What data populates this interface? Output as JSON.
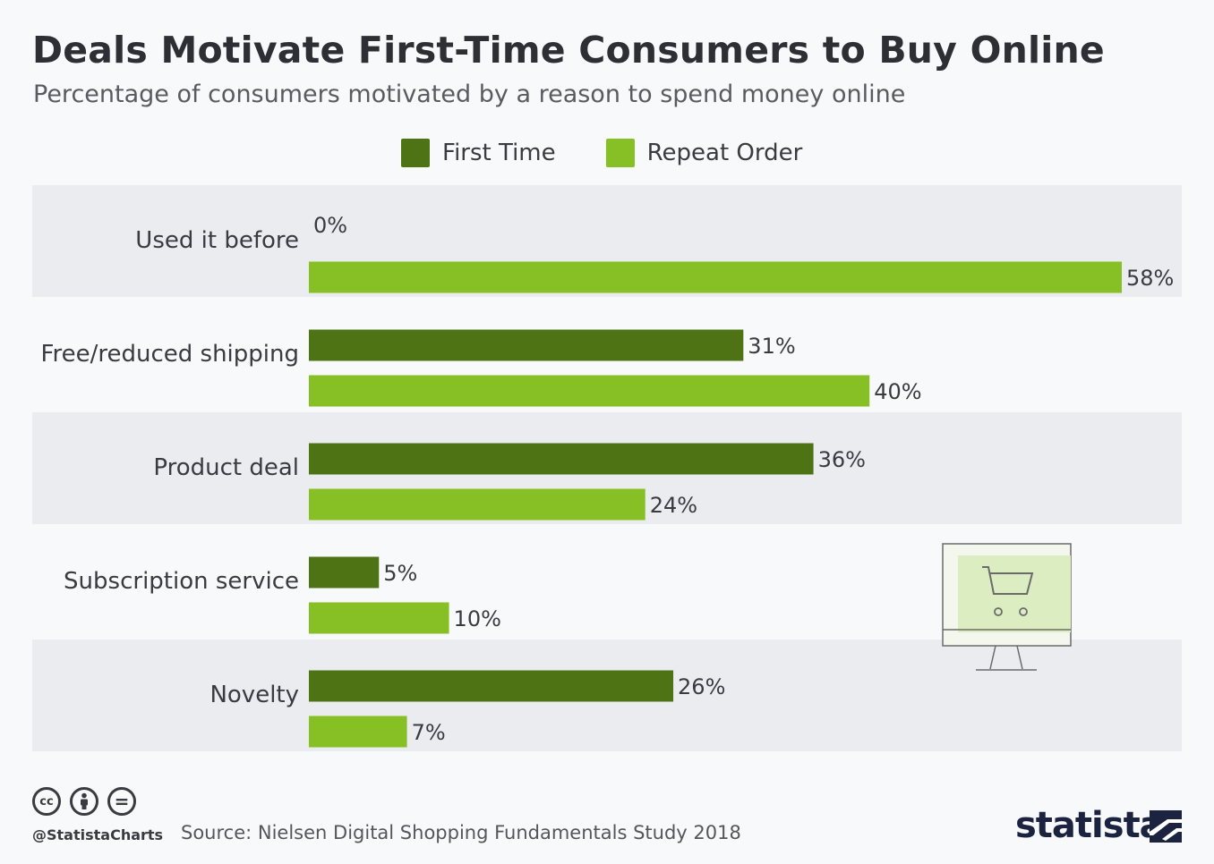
{
  "chart_data": {
    "type": "bar",
    "orientation": "horizontal",
    "title": "Deals Motivate First-Time Consumers to Buy Online",
    "subtitle": "Percentage of consumers motivated by a reason to spend money online",
    "categories": [
      "Used it before",
      "Free/reduced shipping",
      "Product deal",
      "Subscription service",
      "Novelty"
    ],
    "series": [
      {
        "name": "First Time",
        "color": "#4e7315",
        "values": [
          0,
          31,
          36,
          5,
          26
        ],
        "labels": [
          "0%",
          "31%",
          "36%",
          "5%",
          "26%"
        ]
      },
      {
        "name": "Repeat Order",
        "color": "#86c024",
        "values": [
          58,
          40,
          24,
          10,
          7
        ],
        "labels": [
          "58%",
          "40%",
          "24%",
          "10%",
          "7%"
        ]
      }
    ],
    "xlim": [
      0,
      58
    ],
    "unit": "%",
    "legend_position": "top-center",
    "row_band_color": "#ebecef"
  },
  "footer": {
    "icons": [
      "cc-icon",
      "attribution-icon",
      "no-derivatives-icon"
    ],
    "cc_label": "cc",
    "nd_label": "=",
    "handle": "@StatistaCharts",
    "source": "Source: Nielsen Digital Shopping Fundamentals Study 2018",
    "brand": "statista"
  }
}
